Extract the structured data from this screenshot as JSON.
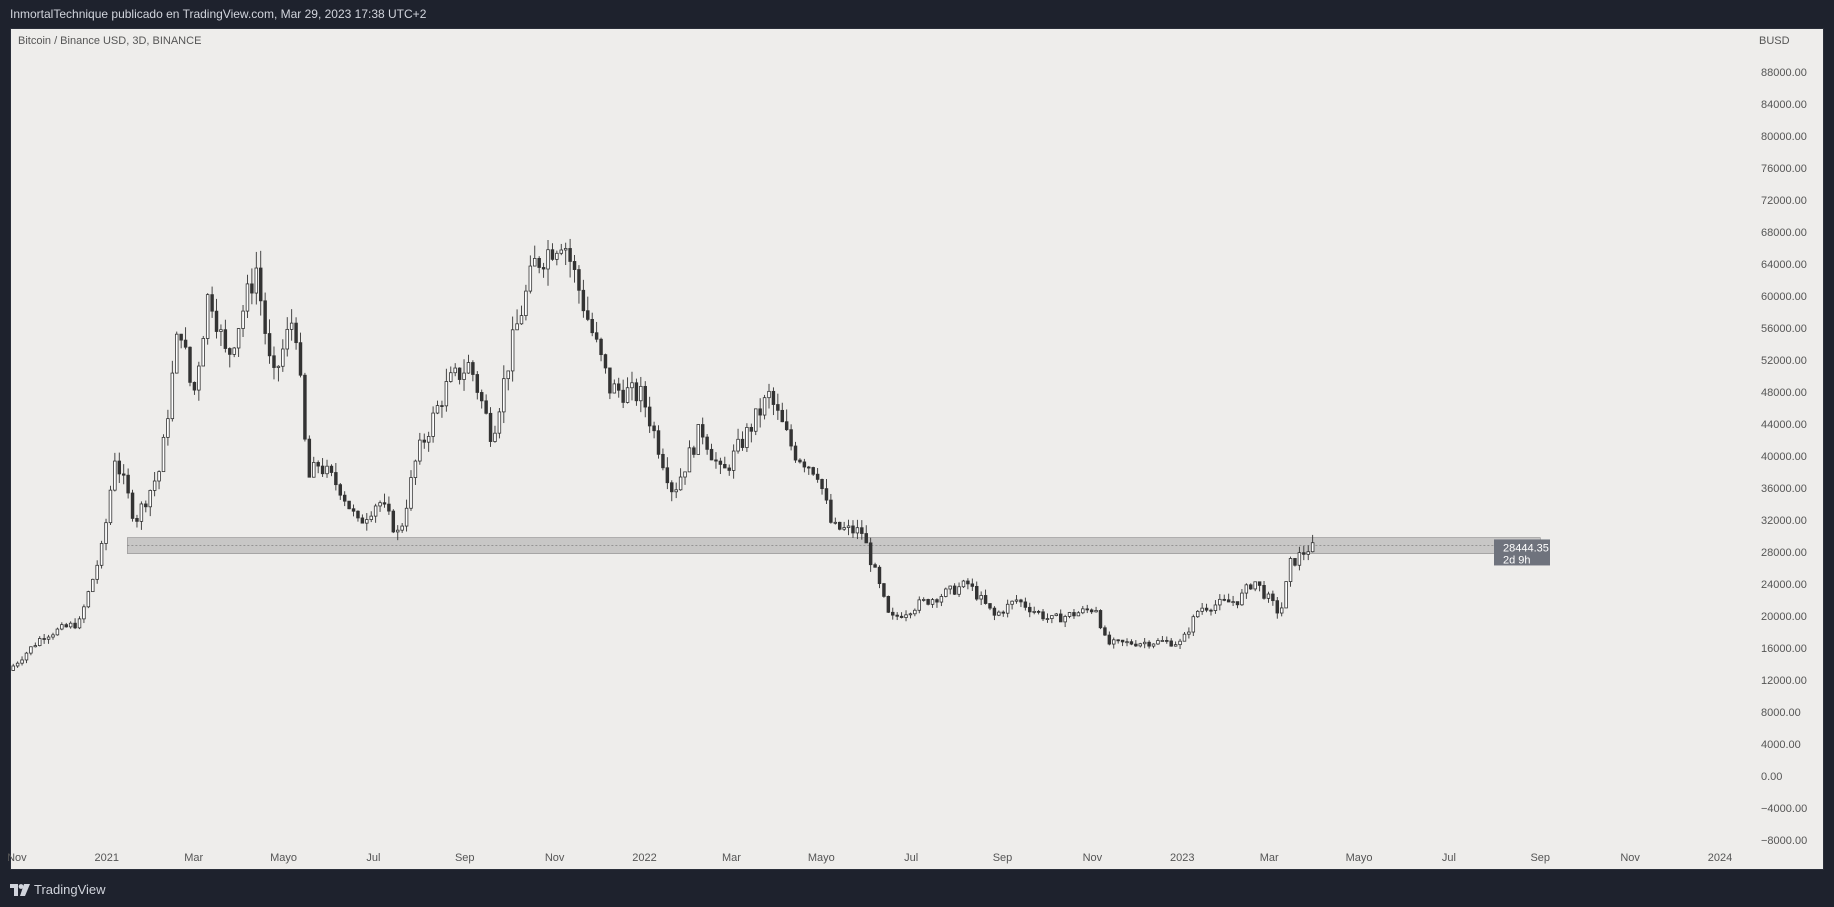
{
  "header": {
    "publisher_line": "InmortalTechnique publicado en TradingView.com, Mar 29, 2023 17:38 UTC+2"
  },
  "chart": {
    "symbol_title": "Bitcoin / Binance USD, 3D, BINANCE",
    "currency": "BUSD"
  },
  "footer": {
    "brand": "TradingView",
    "logo_icon": "tradingview-logo-icon"
  },
  "colors": {
    "page_bg": "#1e222d",
    "chart_bg": "#eeedeb",
    "candle": "#333333",
    "axis_text": "#555555",
    "zone_fill": "#9a9a9a",
    "price_tag_bg": "#6f737d"
  },
  "chart_data": {
    "type": "candlestick",
    "yaxis": {
      "ticks": [
        "88000.00",
        "84000.00",
        "80000.00",
        "76000.00",
        "72000.00",
        "68000.00",
        "64000.00",
        "60000.00",
        "56000.00",
        "52000.00",
        "48000.00",
        "44000.00",
        "40000.00",
        "36000.00",
        "32000.00",
        "28000.00",
        "24000.00",
        "20000.00",
        "16000.00",
        "12000.00",
        "8000.00",
        "4000.00",
        "0.00",
        "−4000.00",
        "−8000.00"
      ],
      "range": [
        -8000,
        92000
      ]
    },
    "xaxis": {
      "ticks": [
        "Nov",
        "2021",
        "Mar",
        "Mayo",
        "Jul",
        "Sep",
        "Nov",
        "2022",
        "Mar",
        "Mayo",
        "Jul",
        "Sep",
        "Nov",
        "2023",
        "Mar",
        "Mayo",
        "Jul",
        "Sep",
        "Nov",
        "2024"
      ],
      "range": [
        "2020-10-28",
        "2024-01-20"
      ]
    },
    "support_zone": {
      "start": "2021-01-15",
      "end": "2023-09-01",
      "low": 27800,
      "high": 29800
    },
    "last_price": {
      "label": "28444.35",
      "value": 28444.35,
      "countdown": "2d 9h"
    },
    "price_path": [
      [
        "2020-10-28",
        13200
      ],
      [
        "2020-11-20",
        17500
      ],
      [
        "2020-12-15",
        19200
      ],
      [
        "2020-12-31",
        28900
      ],
      [
        "2021-01-08",
        40000
      ],
      [
        "2021-01-22",
        32000
      ],
      [
        "2021-02-08",
        38500
      ],
      [
        "2021-02-21",
        57000
      ],
      [
        "2021-03-02",
        47000
      ],
      [
        "2021-03-13",
        61000
      ],
      [
        "2021-03-25",
        52000
      ],
      [
        "2021-04-14",
        63500
      ],
      [
        "2021-04-25",
        49000
      ],
      [
        "2021-05-10",
        58000
      ],
      [
        "2021-05-19",
        37000
      ],
      [
        "2021-05-26",
        39000
      ],
      [
        "2021-06-10",
        36000
      ],
      [
        "2021-06-22",
        31500
      ],
      [
        "2021-07-06",
        34500
      ],
      [
        "2021-07-20",
        30000
      ],
      [
        "2021-08-01",
        40000
      ],
      [
        "2021-08-22",
        49000
      ],
      [
        "2021-09-06",
        51500
      ],
      [
        "2021-09-21",
        42500
      ],
      [
        "2021-10-06",
        55000
      ],
      [
        "2021-10-20",
        64000
      ],
      [
        "2021-11-08",
        67500
      ],
      [
        "2021-11-27",
        56000
      ],
      [
        "2021-12-10",
        48500
      ],
      [
        "2022-01-01",
        47500
      ],
      [
        "2022-01-22",
        35500
      ],
      [
        "2022-02-10",
        43500
      ],
      [
        "2022-02-24",
        37500
      ],
      [
        "2022-03-28",
        47500
      ],
      [
        "2022-04-14",
        40500
      ],
      [
        "2022-04-30",
        38000
      ],
      [
        "2022-05-10",
        31000
      ],
      [
        "2022-05-30",
        30500
      ],
      [
        "2022-06-13",
        22500
      ],
      [
        "2022-06-18",
        19500
      ],
      [
        "2022-07-08",
        21500
      ],
      [
        "2022-08-10",
        24000
      ],
      [
        "2022-08-28",
        20000
      ],
      [
        "2022-09-12",
        22000
      ],
      [
        "2022-10-05",
        19500
      ],
      [
        "2022-11-05",
        21000
      ],
      [
        "2022-11-12",
        16500
      ],
      [
        "2022-12-20",
        16800
      ],
      [
        "2023-01-02",
        16600
      ],
      [
        "2023-01-14",
        21000
      ],
      [
        "2023-02-10",
        22000
      ],
      [
        "2023-02-20",
        24500
      ],
      [
        "2023-03-10",
        20200
      ],
      [
        "2023-03-17",
        26500
      ],
      [
        "2023-03-29",
        28444
      ]
    ]
  }
}
